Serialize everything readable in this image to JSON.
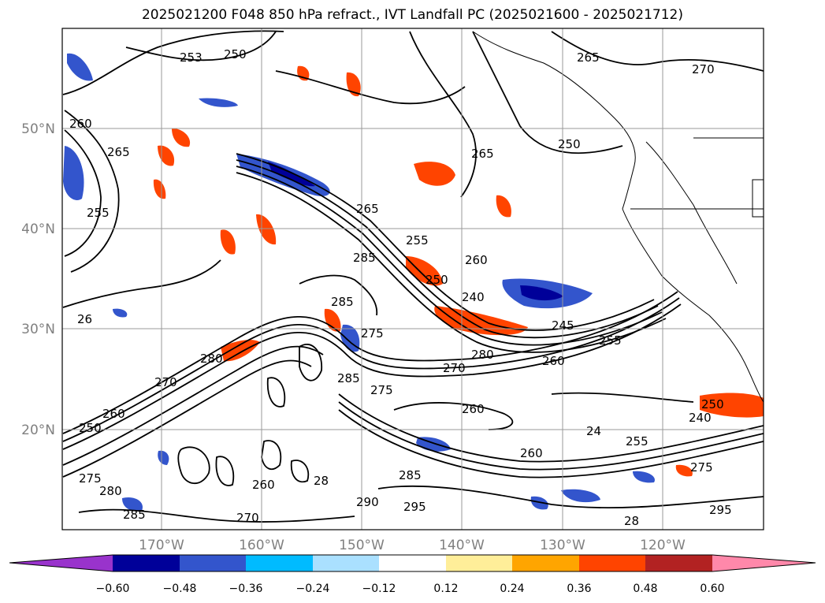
{
  "title": "2025021200 F048 850 hPa refract., IVT Landfall PC (2025021600 - 2025021712)",
  "map": {
    "lat_labels": [
      "50°N",
      "40°N",
      "30°N",
      "20°N"
    ],
    "lon_labels": [
      "170°W",
      "160°W",
      "150°W",
      "140°W",
      "130°W",
      "120°W"
    ],
    "grid": true,
    "contour_labels": [
      "253",
      "250",
      "265",
      "270",
      "260",
      "265",
      "255",
      "265",
      "250",
      "265",
      "260",
      "285",
      "255",
      "250",
      "240",
      "245",
      "255",
      "260",
      "26",
      "280",
      "270",
      "285",
      "275",
      "285",
      "275",
      "270",
      "260",
      "280",
      "250",
      "240",
      "260",
      "260",
      "24",
      "275",
      "295",
      "290",
      "280",
      "295",
      "275",
      "28",
      "285",
      "270",
      "250",
      "285",
      "260",
      "28",
      "255"
    ]
  },
  "colorbar": {
    "ticks": [
      "−0.60",
      "−0.48",
      "−0.36",
      "−0.24",
      "−0.12",
      "0.12",
      "0.24",
      "0.36",
      "0.48",
      "0.60"
    ],
    "colors": [
      "#9933cc",
      "#000099",
      "#3355cc",
      "#00bbff",
      "#aae0ff",
      "#ffffff",
      "#ffee99",
      "#ffa500",
      "#ff4400",
      "#b22222",
      "#ff88aa"
    ]
  }
}
